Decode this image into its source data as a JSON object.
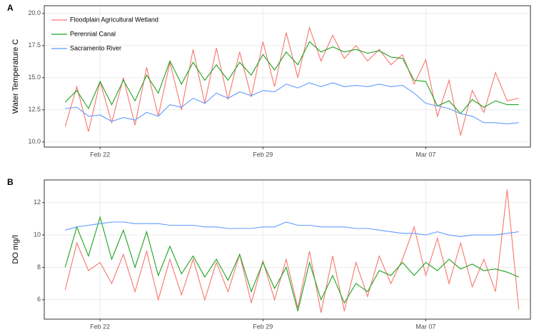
{
  "chart_data": [
    {
      "type": "line",
      "title": "A",
      "ylabel": "Water Temperature C",
      "legend": "top-left",
      "grid": true,
      "x": [
        51.5,
        52,
        52.5,
        53,
        53.5,
        54,
        54.5,
        55,
        55.5,
        56,
        56.5,
        57,
        57.5,
        58,
        58.5,
        59,
        59.5,
        60,
        60.5,
        61,
        61.5,
        62,
        62.5,
        63,
        63.5,
        64,
        64.5,
        65,
        65.5,
        66,
        66.5,
        67,
        67.5,
        68,
        68.5,
        69,
        69.5,
        70,
        70.5,
        71
      ],
      "xlim": [
        50.6,
        71.5
      ],
      "xticks": [
        {
          "value": 53,
          "label": "Feb 22"
        },
        {
          "value": 60,
          "label": "Feb 29"
        },
        {
          "value": 67,
          "label": "Mar 07"
        }
      ],
      "ylim": [
        9.6,
        20.6
      ],
      "yticks": [
        {
          "value": 10,
          "label": "10.0"
        },
        {
          "value": 12.5,
          "label": "12.5"
        },
        {
          "value": 15,
          "label": "15.0"
        },
        {
          "value": 17.5,
          "label": "17.5"
        },
        {
          "value": 20,
          "label": "20.0"
        }
      ],
      "series": [
        {
          "name": "Floodplain Agricultural Wetland",
          "color": "#f8766d",
          "values": [
            11.2,
            14.3,
            10.8,
            14.7,
            11.5,
            15.0,
            11.3,
            15.8,
            12.0,
            16.2,
            12.5,
            17.2,
            13.0,
            17.3,
            13.3,
            17.0,
            13.5,
            17.8,
            14.3,
            18.5,
            15.0,
            18.9,
            16.3,
            18.3,
            16.5,
            17.5,
            16.3,
            17.2,
            16.0,
            16.8,
            14.5,
            16.4,
            12.0,
            14.8,
            10.5,
            14.0,
            12.3,
            15.4,
            13.2,
            13.4
          ]
        },
        {
          "name": "Perennial Canal",
          "color": "#1fa31f",
          "values": [
            13.1,
            14.0,
            12.6,
            14.7,
            12.9,
            14.8,
            13.2,
            15.2,
            13.8,
            16.3,
            14.5,
            16.2,
            14.8,
            16.0,
            14.8,
            16.2,
            15.2,
            16.8,
            15.6,
            17.0,
            16.0,
            17.8,
            17.0,
            17.4,
            17.0,
            17.2,
            16.9,
            17.1,
            16.6,
            16.5,
            14.8,
            14.7,
            12.8,
            13.2,
            12.2,
            13.3,
            12.7,
            13.2,
            12.9,
            12.9
          ]
        },
        {
          "name": "Sacramento River",
          "color": "#619cff",
          "values": [
            12.6,
            12.7,
            12.0,
            12.1,
            11.6,
            11.9,
            11.7,
            12.3,
            12.0,
            12.9,
            12.7,
            13.4,
            13.0,
            13.8,
            13.4,
            13.9,
            13.6,
            14.0,
            13.9,
            14.5,
            14.2,
            14.6,
            14.3,
            14.6,
            14.3,
            14.4,
            14.3,
            14.5,
            14.3,
            14.4,
            13.8,
            13.0,
            12.8,
            12.6,
            12.2,
            12.0,
            11.5,
            11.5,
            11.4,
            11.5
          ]
        }
      ]
    },
    {
      "type": "line",
      "title": "B",
      "ylabel": "DO mg/l",
      "grid": true,
      "x": [
        51.5,
        52,
        52.5,
        53,
        53.5,
        54,
        54.5,
        55,
        55.5,
        56,
        56.5,
        57,
        57.5,
        58,
        58.5,
        59,
        59.5,
        60,
        60.5,
        61,
        61.5,
        62,
        62.5,
        63,
        63.5,
        64,
        64.5,
        65,
        65.5,
        66,
        66.5,
        67,
        67.5,
        68,
        68.5,
        69,
        69.5,
        70,
        70.5,
        71
      ],
      "xlim": [
        50.6,
        71.5
      ],
      "xticks": [
        {
          "value": 53,
          "label": "Feb 22"
        },
        {
          "value": 60,
          "label": "Feb 29"
        },
        {
          "value": 67,
          "label": "Mar 07"
        }
      ],
      "ylim": [
        4.8,
        13.4
      ],
      "yticks": [
        6,
        8,
        10,
        12
      ],
      "series": [
        {
          "color": "#f8766d",
          "values": [
            6.6,
            9.5,
            7.8,
            8.3,
            7.0,
            8.8,
            6.5,
            9.0,
            6.0,
            8.5,
            6.3,
            8.5,
            6.0,
            8.3,
            6.5,
            8.8,
            5.8,
            8.4,
            6.0,
            8.5,
            5.5,
            9.0,
            5.2,
            8.7,
            5.3,
            8.3,
            6.2,
            8.7,
            7.0,
            8.5,
            10.5,
            7.5,
            9.8,
            7.0,
            9.5,
            6.8,
            8.5,
            6.5,
            12.8,
            5.4
          ]
        },
        {
          "color": "#1fa31f",
          "values": [
            8.0,
            10.5,
            8.7,
            11.1,
            8.5,
            10.3,
            8.0,
            10.2,
            7.5,
            9.3,
            7.6,
            8.7,
            7.4,
            8.5,
            7.2,
            8.8,
            6.5,
            8.3,
            6.7,
            8.0,
            5.3,
            8.3,
            6.0,
            7.5,
            5.8,
            7.0,
            6.5,
            7.8,
            7.5,
            8.3,
            7.5,
            8.3,
            7.8,
            8.5,
            7.9,
            8.2,
            7.8,
            7.9,
            7.7,
            7.4
          ]
        },
        {
          "color": "#619cff",
          "values": [
            10.3,
            10.5,
            10.6,
            10.7,
            10.8,
            10.8,
            10.7,
            10.7,
            10.7,
            10.6,
            10.6,
            10.6,
            10.5,
            10.5,
            10.4,
            10.4,
            10.4,
            10.5,
            10.5,
            10.8,
            10.6,
            10.6,
            10.5,
            10.5,
            10.5,
            10.4,
            10.4,
            10.3,
            10.2,
            10.1,
            10.1,
            10.0,
            10.2,
            10.0,
            9.9,
            10.0,
            10.0,
            10.0,
            10.1,
            10.2
          ]
        }
      ]
    }
  ]
}
